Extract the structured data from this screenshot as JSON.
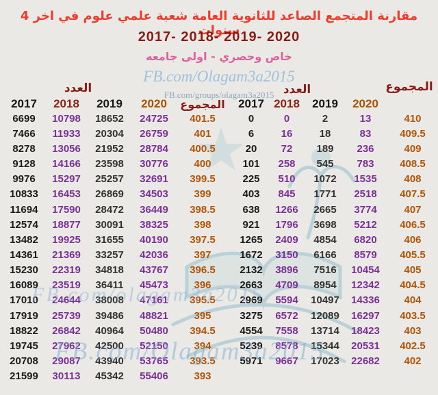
{
  "title": {
    "line1": "مقارنة المتجمع الصاعد للثانوية العامة شعبة علمي علوم في اخر 4 سنوات",
    "years_line": "2017- 2018- 2019- 2020",
    "subtitle": "خاص وحصري - اولى جامعه"
  },
  "watermarks": {
    "top": "FB.com/Olagam3a2015",
    "groups": "FB.com/groups/olagam3a2015",
    "middle": "FB.com/olagam3a2015",
    "bottom": "FB.com/Olagam3a2015"
  },
  "labels": {
    "count": "العدد",
    "total": "المجموع"
  },
  "colors": {
    "background": "#eae9e5",
    "title_red": "#ee3b2c",
    "years_maroon": "#8a1c15",
    "subtitle_pink": "#e0609e",
    "watermark_blue": "#8cb4d6",
    "data_purple": "#7c3097",
    "data_black": "#1b1b1b",
    "total_orange": "#b25407"
  },
  "left_table": {
    "years": [
      "2017",
      "2018",
      "2019",
      "2020"
    ],
    "rows": [
      [
        6699,
        10798,
        18652,
        24725,
        401.5
      ],
      [
        7466,
        11933,
        20304,
        26759,
        401
      ],
      [
        8278,
        13056,
        21952,
        28784,
        400.5
      ],
      [
        9128,
        14166,
        23598,
        30776,
        400
      ],
      [
        9976,
        15297,
        25257,
        32691,
        399.5
      ],
      [
        10833,
        16453,
        26869,
        34503,
        399
      ],
      [
        11694,
        17590,
        28472,
        36449,
        398.5
      ],
      [
        12574,
        18877,
        30091,
        38325,
        398
      ],
      [
        13482,
        19925,
        31655,
        40190,
        397.5
      ],
      [
        14361,
        21369,
        33257,
        42036,
        397
      ],
      [
        15230,
        22319,
        34818,
        43767,
        396.5
      ],
      [
        16089,
        23519,
        36411,
        45473,
        396
      ],
      [
        17010,
        24644,
        38008,
        47161,
        395.5
      ],
      [
        17919,
        25739,
        39486,
        48821,
        395
      ],
      [
        18822,
        26842,
        40964,
        50480,
        394.5
      ],
      [
        19745,
        27962,
        42500,
        52150,
        394
      ],
      [
        20708,
        29087,
        43940,
        53765,
        393.5
      ],
      [
        21599,
        30113,
        45342,
        55406,
        393
      ]
    ]
  },
  "right_table": {
    "years": [
      "2017",
      "2018",
      "2019",
      "2020"
    ],
    "rows": [
      [
        0,
        0,
        2,
        13,
        410
      ],
      [
        6,
        16,
        18,
        83,
        409.5
      ],
      [
        20,
        72,
        189,
        236,
        409
      ],
      [
        101,
        258,
        545,
        783,
        408.5
      ],
      [
        225,
        510,
        1072,
        1535,
        408
      ],
      [
        403,
        845,
        1771,
        2518,
        407.5
      ],
      [
        638,
        1266,
        2665,
        3774,
        407
      ],
      [
        921,
        1796,
        3698,
        5212,
        406.5
      ],
      [
        1265,
        2409,
        4854,
        6820,
        406
      ],
      [
        1672,
        3150,
        6166,
        8579,
        405.5
      ],
      [
        2132,
        3896,
        7516,
        10454,
        405
      ],
      [
        2663,
        4709,
        8954,
        12342,
        404.5
      ],
      [
        2969,
        5594,
        10497,
        14336,
        404
      ],
      [
        3275,
        6572,
        12089,
        16297,
        403.5
      ],
      [
        4554,
        7558,
        13714,
        18423,
        403
      ],
      [
        5239,
        8578,
        15344,
        20531,
        402.5
      ],
      [
        5971,
        9667,
        17023,
        22682,
        402
      ]
    ]
  }
}
